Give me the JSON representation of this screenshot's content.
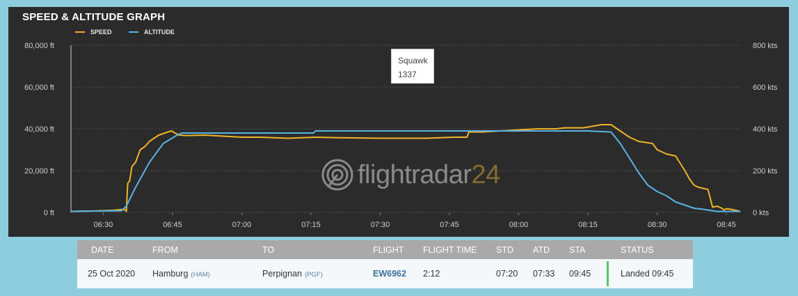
{
  "title": "SPEED & ALTITUDE GRAPH",
  "tooltip": {
    "label": "Squawk",
    "value": "1337"
  },
  "watermark": {
    "text": "flightradar",
    "number": "24"
  },
  "colors": {
    "speed": "#f0b429",
    "altitude": "#5ab4e5",
    "panel": "#2b2b2b",
    "page": "#8ecddd",
    "status": "#58c468"
  },
  "chart_data": {
    "type": "line",
    "title": "SPEED & ALTITUDE GRAPH",
    "legend": [
      "SPEED",
      "ALTITUDE"
    ],
    "legend_position": "top-left",
    "grid": true,
    "x_ticks": [
      "06:30",
      "06:45",
      "07:00",
      "07:15",
      "07:30",
      "07:45",
      "08:00",
      "08:15",
      "08:30",
      "08:45"
    ],
    "x_tick_minutes": [
      390,
      405,
      420,
      435,
      450,
      465,
      480,
      495,
      510,
      525
    ],
    "xlim": [
      383,
      528
    ],
    "y_left_ticks": [
      "0 ft",
      "20,000 ft",
      "40,000 ft",
      "60,000 ft",
      "80,000 ft"
    ],
    "y_left_lim": [
      0,
      80000
    ],
    "y_right_ticks": [
      "0 kts",
      "200 kts",
      "400 kts",
      "600 kts",
      "800 kts"
    ],
    "y_right_lim": [
      0,
      800
    ],
    "series": [
      {
        "name": "SPEED",
        "axis": "right",
        "color": "#f0b429",
        "x": [
          383,
          388,
          392,
          394.5,
          395,
          395.3,
          395.7,
          396.2,
          397,
          398,
          399,
          400,
          402,
          404,
          404.8,
          405.5,
          406.5,
          408,
          412,
          416,
          420,
          424,
          430,
          436,
          440,
          450,
          456,
          460,
          466,
          468.8,
          469.2,
          472,
          476,
          480,
          484,
          488,
          490,
          494,
          498,
          500,
          502,
          504,
          506,
          509,
          510,
          512,
          514,
          516,
          517,
          518,
          519,
          521,
          522,
          523,
          524,
          524.5,
          525,
          526,
          527,
          528
        ],
        "y": [
          5,
          7,
          10,
          15,
          5,
          140,
          150,
          220,
          240,
          300,
          315,
          340,
          370,
          385,
          390,
          380,
          370,
          368,
          370,
          365,
          360,
          360,
          355,
          360,
          358,
          355,
          355,
          355,
          360,
          360,
          385,
          385,
          390,
          395,
          400,
          400,
          405,
          405,
          420,
          420,
          390,
          360,
          340,
          330,
          300,
          280,
          270,
          200,
          160,
          130,
          120,
          110,
          25,
          30,
          20,
          12,
          18,
          15,
          10,
          5
        ]
      },
      {
        "name": "ALTITUDE",
        "axis": "left",
        "color": "#5ab4e5",
        "x": [
          383,
          390,
          394,
          395,
          397,
          400,
          403,
          406,
          407,
          410,
          415,
          420,
          425,
          435.5,
          436,
          445,
          455,
          465,
          475,
          480,
          485,
          495,
          500,
          502,
          504,
          506,
          508,
          510,
          512,
          514,
          516,
          518,
          520,
          522,
          523,
          528
        ],
        "y": [
          500,
          700,
          800,
          3000,
          12000,
          24000,
          33000,
          37000,
          38000,
          38000,
          38000,
          38000,
          38000,
          38000,
          39000,
          39000,
          39000,
          39000,
          39000,
          39000,
          39000,
          39000,
          38500,
          33000,
          26000,
          19000,
          13000,
          10000,
          8000,
          5000,
          3500,
          2000,
          1500,
          800,
          500,
          500
        ]
      }
    ]
  },
  "table": {
    "headers": [
      "DATE",
      "FROM",
      "TO",
      "FLIGHT",
      "FLIGHT TIME",
      "STD",
      "ATD",
      "STA",
      "STATUS"
    ],
    "row": {
      "date": "25 Oct 2020",
      "from": "Hamburg",
      "from_code": "(HAM)",
      "to": "Perpignan",
      "to_code": "(PGF)",
      "flight": "EW6962",
      "flight_time": "2:12",
      "std": "07:20",
      "atd": "07:33",
      "sta": "09:45",
      "status": "Landed 09:45"
    }
  }
}
